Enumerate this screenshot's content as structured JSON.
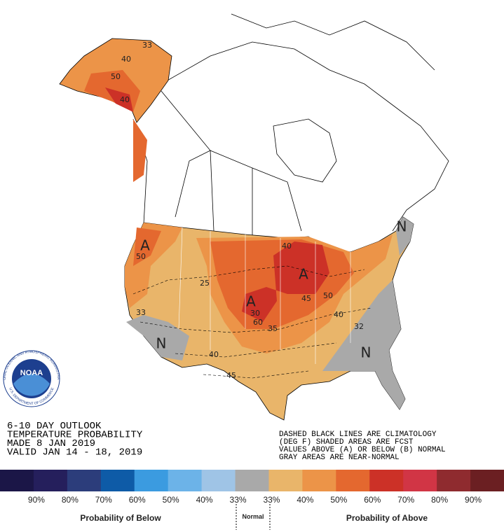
{
  "title_lines": [
    "6-10 DAY OUTLOOK",
    "TEMPERATURE PROBABILITY",
    "MADE  8 JAN 2019",
    "VALID  JAN 14 - 18, 2019"
  ],
  "notes": [
    "DASHED BLACK LINES ARE CLIMATOLOGY",
    "(DEG F) SHADED AREAS ARE FCST",
    "VALUES ABOVE (A) OR BELOW (B) NORMAL",
    "GRAY AREAS ARE NEAR-NORMAL"
  ],
  "logo": {
    "name": "NOAA",
    "ring_top": "NATIONAL OCEANIC AND ATMOSPHERIC ADMINISTRATION",
    "ring_bottom": "U.S. DEPARTMENT OF COMMERCE"
  },
  "map_labels": [
    "A",
    "A",
    "A",
    "N",
    "N",
    "N",
    "50",
    "25",
    "33",
    "40",
    "45",
    "30",
    "60",
    "35",
    "40",
    "45",
    "50",
    "40",
    "32",
    "33",
    "40",
    "50",
    "40"
  ],
  "legend": {
    "colors": [
      "#1b1647",
      "#251f5c",
      "#2c3d7b",
      "#0e5ba7",
      "#3b9be0",
      "#6cb3e8",
      "#9fc4e6",
      "#a9a9a9",
      "#e9b56a",
      "#ec9448",
      "#e4682f",
      "#cc3127",
      "#d13545",
      "#8f2b2f",
      "#6b1f22"
    ],
    "labels": [
      "90%",
      "80%",
      "70%",
      "60%",
      "50%",
      "40%",
      "33%",
      "33%",
      "40%",
      "50%",
      "60%",
      "70%",
      "80%",
      "90%"
    ],
    "below_label": "Probability of Below",
    "normal_label": "Normal",
    "above_label": "Probability of Above"
  }
}
